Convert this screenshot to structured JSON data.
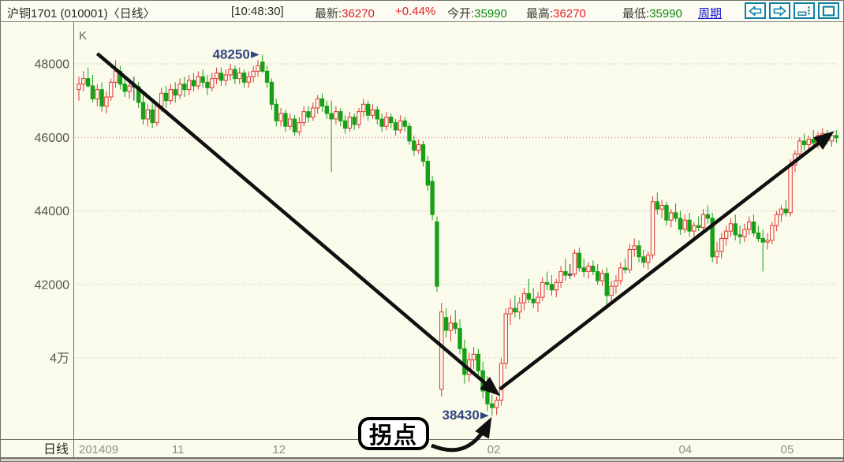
{
  "header": {
    "title": "沪铜1701 (010001)〈日线〉",
    "time": "[10:48:30]",
    "quotes": [
      {
        "label": "最新:",
        "value": "36270",
        "color": "red"
      },
      {
        "label": "",
        "value": "+0.44%",
        "color": "red"
      },
      {
        "label": "今开:",
        "value": "35990",
        "color": "green"
      },
      {
        "label": "最高:",
        "value": "36270",
        "color": "red"
      },
      {
        "label": "最低:",
        "value": "35990",
        "color": "green"
      }
    ],
    "period_link": "周期",
    "icons": [
      "scroll-left",
      "scroll-right",
      "split-window",
      "restore-window"
    ]
  },
  "colors": {
    "up": "#e23434",
    "down": "#17a017",
    "flat": "#26262a",
    "bg": "#fbfbec",
    "grid": "#b5b5ad",
    "last_price": "#e88c8c",
    "annotation_navy": "#33477f",
    "axis_text": "#55554d",
    "month_text": "#8f8f85",
    "link_blue": "#1414cc",
    "icon_teal": "#0d7fa6"
  },
  "chart_data": {
    "type": "candlestick",
    "corner_label": "K",
    "axis_left_label": "日线",
    "ylim": [
      37800,
      49000
    ],
    "grid": true,
    "last_price_line": 45990,
    "y_labels": [
      {
        "price": 48000,
        "label": "48000"
      },
      {
        "price": 46000,
        "label": "46000"
      },
      {
        "price": 44000,
        "label": "44000"
      },
      {
        "price": 42000,
        "label": "42000"
      },
      {
        "price": 40000,
        "label": "4万"
      }
    ],
    "x_labels": [
      {
        "text": "201409",
        "index": 0,
        "align": "start"
      },
      {
        "text": "11",
        "index": 21.6
      },
      {
        "text": "12",
        "index": 43.6
      },
      {
        "text": "02",
        "index": 90.4
      },
      {
        "text": "04",
        "index": 132.1
      },
      {
        "text": "05",
        "index": 154.3
      }
    ],
    "annotations": {
      "peak": {
        "text": "48250",
        "index": 40,
        "price": 48250
      },
      "low": {
        "text": "38430",
        "index": 90,
        "price": 38430
      },
      "turning_point": {
        "text": "拐点"
      },
      "trend_arrows": [
        {
          "from_index": 4,
          "from_price": 48280,
          "to_index": 90.9,
          "to_price": 39060
        },
        {
          "from_index": 91.7,
          "from_price": 39150,
          "to_index": 163.6,
          "to_price": 46080
        }
      ]
    },
    "candles": [
      [
        47300,
        47650,
        47000,
        47450
      ],
      [
        47450,
        47800,
        47250,
        47600
      ],
      [
        47600,
        47900,
        47350,
        47400
      ],
      [
        47400,
        47700,
        46950,
        47050
      ],
      [
        47050,
        47450,
        46850,
        47300
      ],
      [
        47300,
        47500,
        46700,
        46850
      ],
      [
        46850,
        47250,
        46650,
        47100
      ],
      [
        47100,
        47600,
        47000,
        47500
      ],
      [
        47500,
        48100,
        47350,
        47800
      ],
      [
        47800,
        47950,
        47300,
        47450
      ],
      [
        47450,
        47700,
        47100,
        47250
      ],
      [
        47250,
        47550,
        47050,
        47400
      ],
      [
        47400,
        47650,
        47000,
        47380,
        1
      ],
      [
        47380,
        47500,
        46800,
        46950
      ],
      [
        46950,
        47150,
        46350,
        46500
      ],
      [
        46500,
        46900,
        46300,
        46750
      ],
      [
        46750,
        46950,
        46250,
        46400
      ],
      [
        46400,
        46950,
        46300,
        46850
      ],
      [
        46850,
        47350,
        46700,
        47200
      ],
      [
        47200,
        47400,
        46800,
        47000
      ],
      [
        47000,
        47450,
        46900,
        47300
      ],
      [
        47300,
        47500,
        46950,
        47150
      ],
      [
        47150,
        47600,
        47050,
        47450
      ],
      [
        47450,
        47650,
        47100,
        47300
      ],
      [
        47300,
        47700,
        47150,
        47550
      ],
      [
        47550,
        47750,
        47250,
        47400
      ],
      [
        47400,
        47800,
        47300,
        47650
      ],
      [
        47650,
        47850,
        47350,
        47500
      ],
      [
        47500,
        47700,
        47150,
        47350
      ],
      [
        47350,
        47750,
        47250,
        47600
      ],
      [
        47600,
        47900,
        47450,
        47750
      ],
      [
        47750,
        47900,
        47400,
        47550
      ],
      [
        47550,
        47850,
        47400,
        47700
      ],
      [
        47700,
        48000,
        47550,
        47850
      ],
      [
        47850,
        47950,
        47450,
        47600
      ],
      [
        47600,
        47900,
        47450,
        47750
      ],
      [
        47750,
        47850,
        47350,
        47500
      ],
      [
        47500,
        47800,
        47350,
        47650
      ],
      [
        47650,
        47950,
        47500,
        47800
      ],
      [
        47800,
        48100,
        47650,
        47950
      ],
      [
        48050,
        48250,
        47750,
        47800
      ],
      [
        47800,
        47950,
        47350,
        47500
      ],
      [
        47500,
        47600,
        46750,
        46900
      ],
      [
        46900,
        47050,
        46300,
        46450
      ],
      [
        46450,
        46800,
        46300,
        46650
      ],
      [
        46650,
        46750,
        46150,
        46300
      ],
      [
        46300,
        46650,
        46200,
        46500
      ],
      [
        46500,
        46600,
        46050,
        46150
      ],
      [
        46150,
        46550,
        46050,
        46400
      ],
      [
        46400,
        46850,
        46300,
        46700
      ],
      [
        46700,
        46850,
        46400,
        46550
      ],
      [
        46550,
        46950,
        46450,
        46800
      ],
      [
        46800,
        47150,
        46650,
        47050
      ],
      [
        47050,
        47200,
        46700,
        46850
      ],
      [
        46850,
        47000,
        46500,
        46650
      ],
      [
        46650,
        47000,
        45050,
        46500
      ],
      [
        46500,
        46850,
        46350,
        46700
      ],
      [
        46700,
        46800,
        46300,
        46450
      ],
      [
        46450,
        46600,
        46100,
        46250
      ],
      [
        46250,
        46700,
        46150,
        46550
      ],
      [
        46550,
        46650,
        46200,
        46350
      ],
      [
        46350,
        46800,
        46250,
        46700
      ],
      [
        46700,
        47050,
        46550,
        46900
      ],
      [
        46900,
        47000,
        46450,
        46600
      ],
      [
        46600,
        46900,
        46500,
        46750
      ],
      [
        46750,
        46850,
        46350,
        46500
      ],
      [
        46500,
        46650,
        46150,
        46300
      ],
      [
        46300,
        46700,
        46200,
        46550
      ],
      [
        46550,
        46650,
        46250,
        46400
      ],
      [
        46400,
        46500,
        46050,
        46200
      ],
      [
        46200,
        46600,
        46100,
        46450
      ],
      [
        46450,
        46550,
        46150,
        46300
      ],
      [
        46300,
        46400,
        45800,
        45900
      ],
      [
        45900,
        46050,
        45500,
        45650
      ],
      [
        45650,
        45950,
        45550,
        45800
      ],
      [
        45800,
        45900,
        45200,
        45350
      ],
      [
        45350,
        45500,
        44550,
        44700
      ],
      [
        44800,
        44950,
        43750,
        43900
      ],
      [
        43700,
        43850,
        41800,
        41950
      ],
      [
        39150,
        41500,
        38950,
        41250
      ],
      [
        41100,
        41350,
        40550,
        40750
      ],
      [
        40750,
        41150,
        40450,
        40950
      ],
      [
        40950,
        41300,
        40650,
        40800
      ],
      [
        40800,
        41050,
        40100,
        40250
      ],
      [
        40250,
        40500,
        39300,
        39550
      ],
      [
        39550,
        40150,
        39350,
        39950
      ],
      [
        39950,
        40300,
        39700,
        40100
      ],
      [
        40100,
        40250,
        39450,
        39650
      ],
      [
        39650,
        39900,
        38900,
        39100
      ],
      [
        39100,
        39500,
        38550,
        38750
      ],
      [
        38750,
        39000,
        38430,
        38650
      ],
      [
        38650,
        38950,
        38450,
        38850
      ],
      [
        38850,
        40000,
        38700,
        39850
      ],
      [
        39850,
        41350,
        39700,
        41200
      ],
      [
        41200,
        41600,
        40900,
        41350
      ],
      [
        41350,
        41700,
        41100,
        41250
      ],
      [
        41250,
        41650,
        41050,
        41500
      ],
      [
        41500,
        41900,
        41300,
        41750
      ],
      [
        41750,
        42150,
        41500,
        41600
      ],
      [
        41600,
        41900,
        41350,
        41500
      ],
      [
        41500,
        41800,
        41250,
        41650
      ],
      [
        41650,
        42200,
        41550,
        42050
      ],
      [
        42050,
        42350,
        41850,
        42000
      ],
      [
        42000,
        42250,
        41700,
        41850
      ],
      [
        41850,
        42150,
        41650,
        42050
      ],
      [
        42050,
        42500,
        41900,
        42350
      ],
      [
        42350,
        42700,
        42100,
        42250
      ],
      [
        42250,
        42550,
        42150,
        42280,
        1
      ],
      [
        42280,
        42950,
        42200,
        42850
      ],
      [
        42850,
        43000,
        42350,
        42450
      ],
      [
        42450,
        42700,
        42200,
        42350
      ],
      [
        42350,
        42600,
        42150,
        42500
      ],
      [
        42500,
        42650,
        42250,
        42350
      ],
      [
        42350,
        42550,
        42000,
        42100
      ],
      [
        42100,
        42400,
        41950,
        42300
      ],
      [
        42300,
        42450,
        41450,
        41700
      ],
      [
        41700,
        42100,
        41550,
        41950
      ],
      [
        41950,
        42250,
        41750,
        42100
      ],
      [
        42100,
        42600,
        42000,
        42450
      ],
      [
        42450,
        42700,
        42300,
        42400
      ],
      [
        42400,
        43100,
        42300,
        42950
      ],
      [
        42950,
        43250,
        42750,
        43050
      ],
      [
        43050,
        43200,
        42600,
        42750
      ],
      [
        42750,
        42950,
        42450,
        42600
      ],
      [
        42600,
        42900,
        42400,
        42800
      ],
      [
        42800,
        44400,
        42700,
        44250
      ],
      [
        44250,
        44500,
        43900,
        44050
      ],
      [
        44050,
        44300,
        43800,
        44150
      ],
      [
        44150,
        44250,
        43600,
        43750
      ],
      [
        43750,
        44050,
        43550,
        43950
      ],
      [
        43950,
        44200,
        43700,
        43800
      ],
      [
        43800,
        44000,
        43350,
        43500
      ],
      [
        43500,
        43900,
        43400,
        43750
      ],
      [
        43750,
        43950,
        43300,
        43450
      ],
      [
        43450,
        43700,
        43200,
        43600
      ],
      [
        43600,
        43850,
        43450,
        43550
      ],
      [
        43550,
        44050,
        43400,
        43900
      ],
      [
        43900,
        44150,
        43650,
        43800
      ],
      [
        43800,
        43950,
        42600,
        42750
      ],
      [
        42750,
        43150,
        42550,
        42900
      ],
      [
        42900,
        43400,
        42700,
        43250
      ],
      [
        43250,
        43600,
        43050,
        43450
      ],
      [
        43450,
        43800,
        43300,
        43650
      ],
      [
        43650,
        43900,
        43200,
        43350
      ],
      [
        43350,
        43600,
        43100,
        43300
      ],
      [
        43300,
        43650,
        43150,
        43500
      ],
      [
        43500,
        43850,
        43350,
        43700
      ],
      [
        43700,
        43900,
        43300,
        43400
      ],
      [
        43400,
        43600,
        43150,
        43250
      ],
      [
        43250,
        43500,
        42350,
        43150
      ],
      [
        43150,
        43400,
        42950,
        43200
      ],
      [
        43200,
        43700,
        43100,
        43600
      ],
      [
        43600,
        44000,
        43450,
        43900
      ],
      [
        43900,
        44150,
        43700,
        44050
      ],
      [
        44050,
        44300,
        43850,
        43950
      ],
      [
        43950,
        45400,
        43850,
        45250
      ],
      [
        45250,
        45650,
        45050,
        45550
      ],
      [
        45550,
        46000,
        45400,
        45900
      ],
      [
        45900,
        46100,
        45650,
        45800
      ],
      [
        45800,
        46050,
        45600,
        45950
      ],
      [
        45950,
        46200,
        45750,
        45850
      ],
      [
        45850,
        46150,
        45700,
        46050
      ],
      [
        46050,
        46250,
        45900,
        46100
      ],
      [
        46100,
        46200,
        45800,
        45900
      ],
      [
        45900,
        46150,
        45750,
        46050
      ],
      [
        46050,
        46200,
        45850,
        45990
      ]
    ]
  }
}
